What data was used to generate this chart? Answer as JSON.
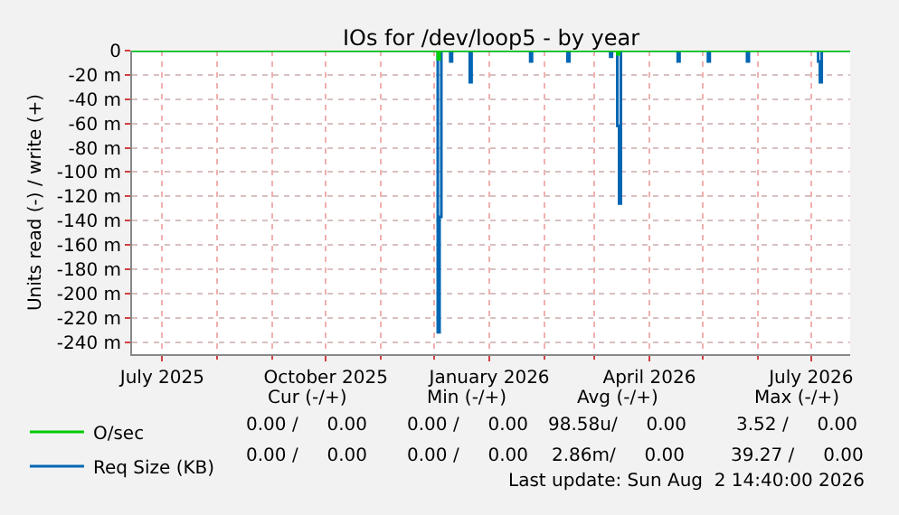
{
  "chart_data": {
    "type": "step",
    "title": "IOs for /dev/loop5 - by year",
    "ylabel": "Units read (-) / write (+)",
    "xlim": [
      "2025-06-14",
      "2026-07-23"
    ],
    "xticks": [
      {
        "value": "2025-07-01",
        "label": "July 2025"
      },
      {
        "value": "2025-10-01",
        "label": "October 2025"
      },
      {
        "value": "2026-01-01",
        "label": "January 2026"
      },
      {
        "value": "2026-04-01",
        "label": "April 2026"
      },
      {
        "value": "2026-07-01",
        "label": "July 2026"
      }
    ],
    "ylim": [
      -250,
      0
    ],
    "yticks": [
      0,
      {
        "value": -20,
        "label": "-20 m"
      },
      {
        "value": -40,
        "label": "-40 m"
      },
      {
        "value": -60,
        "label": "-60 m"
      },
      {
        "value": -80,
        "label": "-80 m"
      },
      {
        "value": -100,
        "label": "-100 m"
      },
      {
        "value": -120,
        "label": "-120 m"
      },
      {
        "value": -140,
        "label": "-140 m"
      },
      {
        "value": -160,
        "label": "-160 m"
      },
      {
        "value": -180,
        "label": "-180 m"
      },
      {
        "value": -200,
        "label": "-200 m"
      },
      {
        "value": -220,
        "label": "-220 m"
      },
      {
        "value": -240,
        "label": "-240 m"
      }
    ],
    "grid": true,
    "legend": "bottom left",
    "line_style": "solid",
    "marker": "none",
    "series": [
      {
        "name": "O/sec",
        "color": "#00cc00",
        "x": [
          "2025-06-14",
          "2025-12-03",
          "2025-12-04",
          "2026-03-14",
          "2026-03-15",
          "2026-07-23"
        ],
        "values": [
          0,
          -7,
          0,
          -3,
          0,
          0
        ]
      },
      {
        "name": "Req Size (KB)",
        "color": "#0066b3",
        "x": [
          "2025-06-14",
          "2025-12-03",
          "2025-12-04",
          "2025-12-05",
          "2025-12-10",
          "2025-12-11",
          "2025-12-21",
          "2025-12-22",
          "2026-01-24",
          "2026-01-25",
          "2026-02-14",
          "2026-02-15",
          "2026-03-10",
          "2026-03-11",
          "2026-03-14",
          "2026-03-15",
          "2026-03-16",
          "2026-04-17",
          "2026-04-18",
          "2026-05-04",
          "2026-05-05",
          "2026-05-26",
          "2026-05-27",
          "2026-07-05",
          "2026-07-06",
          "2026-07-07",
          "2026-07-23"
        ],
        "values": [
          0,
          -232,
          -137,
          0,
          -9,
          0,
          -26,
          0,
          -9,
          0,
          -9,
          0,
          -5,
          0,
          -62,
          -126,
          0,
          -9,
          0,
          -9,
          0,
          -9,
          0,
          -9,
          -26,
          0,
          0
        ]
      }
    ],
    "annotations": [
      "Cur (-/+)",
      "Min (-/+)",
      "Avg (-/+)",
      "Max (-/+)",
      "0.00 /     0.00",
      "0.00 /     0.00",
      "98.58u/     0.00",
      "3.52 /     0.00",
      "0.00 /     0.00",
      "0.00 /     0.00",
      "2.86m/     0.00",
      "39.27 /     0.00",
      "Last update: Sun Aug  2 14:40:00 2026"
    ]
  }
}
